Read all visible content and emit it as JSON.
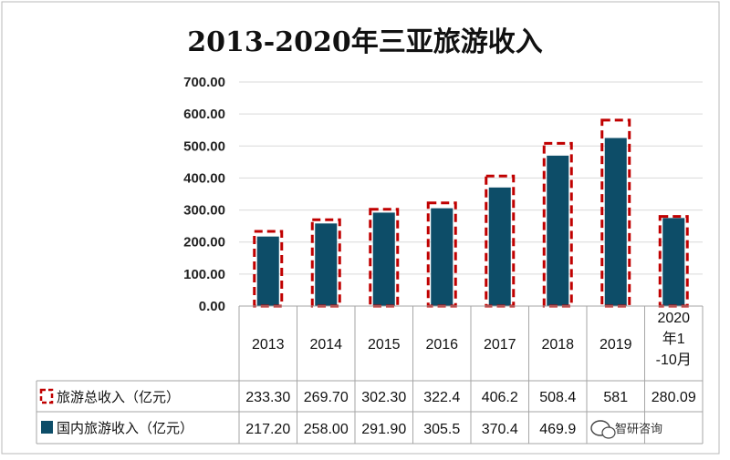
{
  "chart_data": {
    "type": "bar",
    "title": "2013-2020年三亚旅游收入",
    "categories": [
      "2013",
      "2014",
      "2015",
      "2016",
      "2017",
      "2018",
      "2019",
      "2020年1-10月"
    ],
    "series": [
      {
        "name": "旅游总收入（亿元）",
        "style": "dashed-outline",
        "color": "#c00000",
        "values": [
          233.3,
          269.7,
          302.3,
          322.4,
          406.2,
          508.4,
          581,
          280.09
        ],
        "labels": [
          "233.30",
          "269.70",
          "302.30",
          "322.4",
          "406.2",
          "508.4",
          "581",
          "280.09"
        ]
      },
      {
        "name": "国内旅游收入（亿元）",
        "style": "filled",
        "color": "#0d4d68",
        "values": [
          217.2,
          258.0,
          291.9,
          305.5,
          370.4,
          469.9,
          525,
          275
        ],
        "labels": [
          "217.20",
          "258.00",
          "291.90",
          "305.5",
          "370.4",
          "469.9",
          "",
          ""
        ]
      }
    ],
    "yticks": [
      "0.00",
      "100.00",
      "200.00",
      "300.00",
      "400.00",
      "500.00",
      "600.00",
      "700.00"
    ],
    "ylim": [
      0,
      700
    ],
    "grid": true,
    "legend": "data-table-left"
  },
  "watermark": {
    "icon": "wechat-icon",
    "text": "智研咨询"
  }
}
